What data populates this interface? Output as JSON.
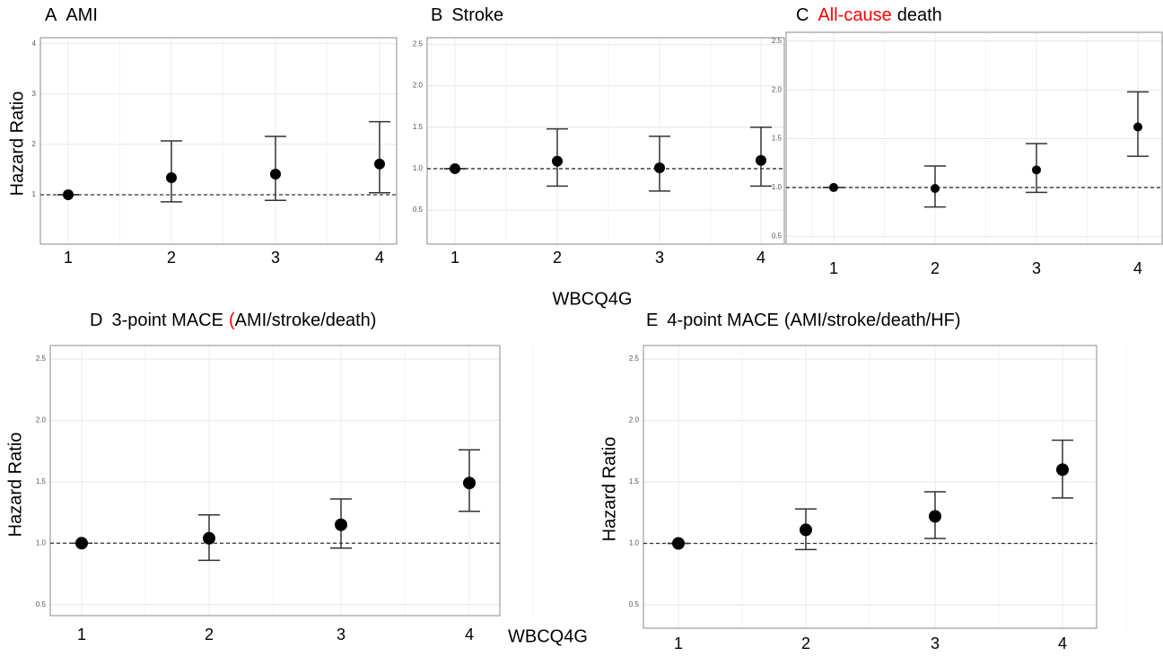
{
  "chart_data": [
    {
      "type": "errorbar",
      "panel_label": "A",
      "title_parts": [
        {
          "text": "AMI",
          "color": "#000000"
        }
      ],
      "ylabel": "Hazard Ratio",
      "categories": [
        "1",
        "2",
        "3",
        "4"
      ],
      "values": [
        1.0,
        1.34,
        1.41,
        1.61
      ],
      "lower": [
        1.0,
        0.86,
        0.89,
        1.04
      ],
      "upper": [
        1.0,
        2.07,
        2.16,
        2.45
      ],
      "ylim": [
        0.02,
        4.12
      ],
      "yticks": [
        1,
        2,
        3,
        4
      ],
      "ref_line": 1,
      "grid": true,
      "color": "#000000"
    },
    {
      "type": "errorbar",
      "panel_label": "B",
      "title_parts": [
        {
          "text": "Stroke",
          "color": "#000000"
        }
      ],
      "xlabel": "WBCQ4G",
      "categories": [
        "1",
        "2",
        "3",
        "4"
      ],
      "values": [
        1.0,
        1.09,
        1.01,
        1.1
      ],
      "lower": [
        1.0,
        0.79,
        0.73,
        0.79
      ],
      "upper": [
        1.0,
        1.48,
        1.39,
        1.5
      ],
      "ylim": [
        0.09,
        2.58
      ],
      "yticks": [
        {
          "value": 0.5,
          "label": "0.5"
        },
        {
          "value": 1,
          "label": "1.0"
        },
        {
          "value": 1.5,
          "label": "1.5"
        },
        {
          "value": 2,
          "label": "2.0"
        },
        {
          "value": 2.5,
          "label": "2.5"
        }
      ],
      "ref_line": 1,
      "grid": true,
      "color": "#000000"
    },
    {
      "type": "errorbar",
      "panel_label": "C",
      "title_parts": [
        {
          "text": "All-cause",
          "color": "#ff0000"
        },
        {
          "text": "death",
          "color": "#000000"
        }
      ],
      "categories": [
        "1",
        "2",
        "3",
        "4"
      ],
      "values": [
        1.0,
        0.99,
        1.18,
        1.62
      ],
      "lower": [
        1.0,
        0.8,
        0.95,
        1.32
      ],
      "upper": [
        1.0,
        1.22,
        1.45,
        1.98
      ],
      "ylim": [
        0.42,
        2.59
      ],
      "yticks": [
        {
          "value": 0.5,
          "label": "0.5"
        },
        {
          "value": 1,
          "label": "1.0"
        },
        {
          "value": 1.5,
          "label": "1.5"
        },
        {
          "value": 2,
          "label": "2.0"
        },
        {
          "value": 2.5,
          "label": "2.5"
        }
      ],
      "ref_line": 1,
      "grid": true,
      "color": "#000000"
    },
    {
      "type": "errorbar",
      "panel_label": "D",
      "title_parts": [
        {
          "text": "3-point MACE",
          "color": "#000000"
        },
        {
          "text": "(",
          "color": "#ff0000"
        },
        {
          "text": "AMI/stroke/death)",
          "color": "#000000"
        }
      ],
      "ylabel": "Hazard Ratio",
      "xlabel": "WBCQ4G",
      "categories": [
        "1",
        "2",
        "3",
        "4"
      ],
      "values": [
        1.0,
        1.04,
        1.15,
        1.49
      ],
      "lower": [
        1.0,
        0.86,
        0.96,
        1.26
      ],
      "upper": [
        1.0,
        1.23,
        1.36,
        1.76
      ],
      "ylim": [
        0.41,
        2.61
      ],
      "yticks": [
        {
          "value": 0.5,
          "label": "0.5"
        },
        {
          "value": 1,
          "label": "1.0"
        },
        {
          "value": 1.5,
          "label": "1.5"
        },
        {
          "value": 2,
          "label": "2.0"
        },
        {
          "value": 2.5,
          "label": "2.5"
        }
      ],
      "ref_line": 1,
      "grid": true,
      "color": "#000000"
    },
    {
      "type": "errorbar",
      "panel_label": "E",
      "title_parts": [
        {
          "text": "4-point MACE",
          "color": "#000000"
        },
        {
          "text": "(AMI/stroke/death/HF)",
          "color": "#000000"
        }
      ],
      "ylabel": "Hazard Ratio",
      "categories": [
        "1",
        "2",
        "3",
        "4"
      ],
      "values": [
        1.0,
        1.11,
        1.22,
        1.6
      ],
      "lower": [
        1.0,
        0.95,
        1.04,
        1.37
      ],
      "upper": [
        1.0,
        1.28,
        1.42,
        1.84
      ],
      "ylim": [
        0.31,
        2.61
      ],
      "yticks": [
        {
          "value": 0.5,
          "label": "0.5"
        },
        {
          "value": 1,
          "label": "1.0"
        },
        {
          "value": 1.5,
          "label": "1.5"
        },
        {
          "value": 2,
          "label": "2.0"
        },
        {
          "value": 2.5,
          "label": "2.5"
        }
      ],
      "ref_line": 1,
      "grid": true,
      "color": "#000000"
    }
  ]
}
